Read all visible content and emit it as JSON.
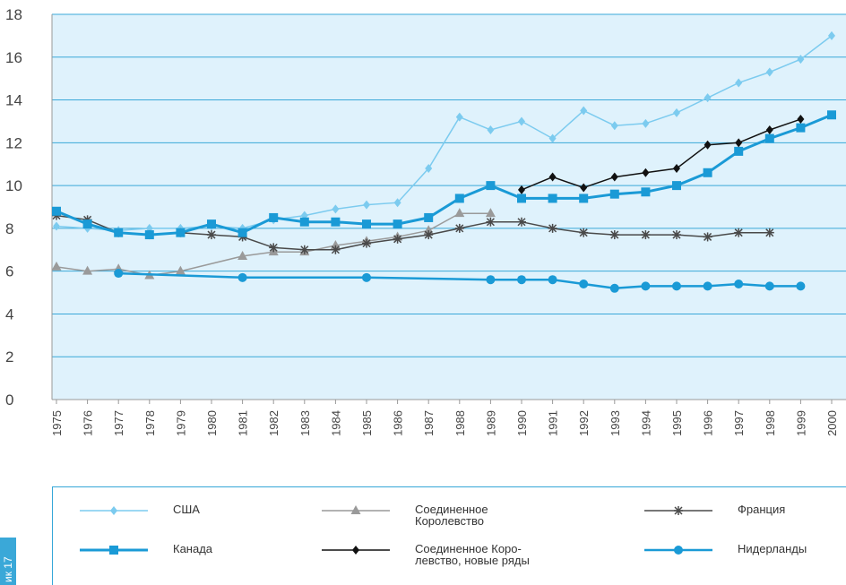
{
  "chart_data": {
    "type": "line",
    "x": [
      "1975",
      "1976",
      "1977",
      "1978",
      "1979",
      "1980",
      "1981",
      "1982",
      "1983",
      "1984",
      "1985",
      "1986",
      "1987",
      "1988",
      "1989",
      "1990",
      "1991",
      "1992",
      "1993",
      "1994",
      "1995",
      "1996",
      "1997",
      "1998",
      "1999",
      "2000"
    ],
    "ylim": [
      0,
      18
    ],
    "yticks": [
      0,
      2,
      4,
      6,
      8,
      10,
      12,
      14,
      16,
      18
    ],
    "grid": true,
    "legend_position": "bottom",
    "series": [
      {
        "name": "США",
        "color": "#7ccbef",
        "marker": "diamond",
        "values": [
          8.1,
          8.0,
          7.9,
          8.0,
          8.0,
          8.1,
          8.0,
          8.4,
          8.6,
          8.9,
          9.1,
          9.2,
          10.8,
          13.2,
          12.6,
          13.0,
          12.2,
          13.5,
          12.8,
          12.9,
          13.4,
          14.1,
          14.8,
          15.3,
          15.9,
          17.0
        ]
      },
      {
        "name": "Соединенное\nКоролевство",
        "color": "#9a9a9a",
        "marker": "triangle",
        "values": [
          6.2,
          6.0,
          6.1,
          5.8,
          6.0,
          null,
          6.7,
          6.9,
          6.9,
          7.2,
          7.4,
          7.6,
          7.9,
          8.7,
          8.7,
          null,
          null,
          null,
          null,
          null,
          null,
          null,
          null,
          null,
          null,
          null
        ]
      },
      {
        "name": "Франция",
        "color": "#4a4a4a",
        "marker": "star",
        "values": [
          8.6,
          8.4,
          7.8,
          7.7,
          7.8,
          7.7,
          7.6,
          7.1,
          7.0,
          7.0,
          7.3,
          7.5,
          7.7,
          8.0,
          8.3,
          8.3,
          8.0,
          7.8,
          7.7,
          7.7,
          7.7,
          7.6,
          7.8,
          7.8,
          null,
          null
        ]
      },
      {
        "name": "Канада",
        "color": "#1a9ad6",
        "marker": "square",
        "values": [
          8.8,
          8.2,
          7.8,
          7.7,
          7.8,
          8.2,
          7.8,
          8.5,
          8.3,
          8.3,
          8.2,
          8.2,
          8.5,
          9.4,
          10.0,
          9.4,
          9.4,
          9.4,
          9.6,
          9.7,
          10.0,
          10.6,
          11.6,
          12.2,
          12.7,
          13.3
        ]
      },
      {
        "name": "Соединенное Коро-\nлевство, новые ряды",
        "color": "#111111",
        "marker": "diamond",
        "values": [
          null,
          null,
          null,
          null,
          null,
          null,
          null,
          null,
          null,
          null,
          null,
          null,
          null,
          null,
          null,
          9.8,
          10.4,
          9.9,
          10.4,
          10.6,
          10.8,
          11.9,
          12.0,
          12.6,
          13.1,
          null
        ]
      },
      {
        "name": "Нидерланды",
        "color": "#1a9ad6",
        "marker": "circle",
        "values": [
          null,
          null,
          5.9,
          null,
          null,
          null,
          5.7,
          null,
          null,
          null,
          5.7,
          null,
          null,
          null,
          5.6,
          5.6,
          5.6,
          5.4,
          5.2,
          5.3,
          5.3,
          5.3,
          5.4,
          5.3,
          5.3,
          null
        ]
      }
    ]
  },
  "side_tab": "ик 17"
}
